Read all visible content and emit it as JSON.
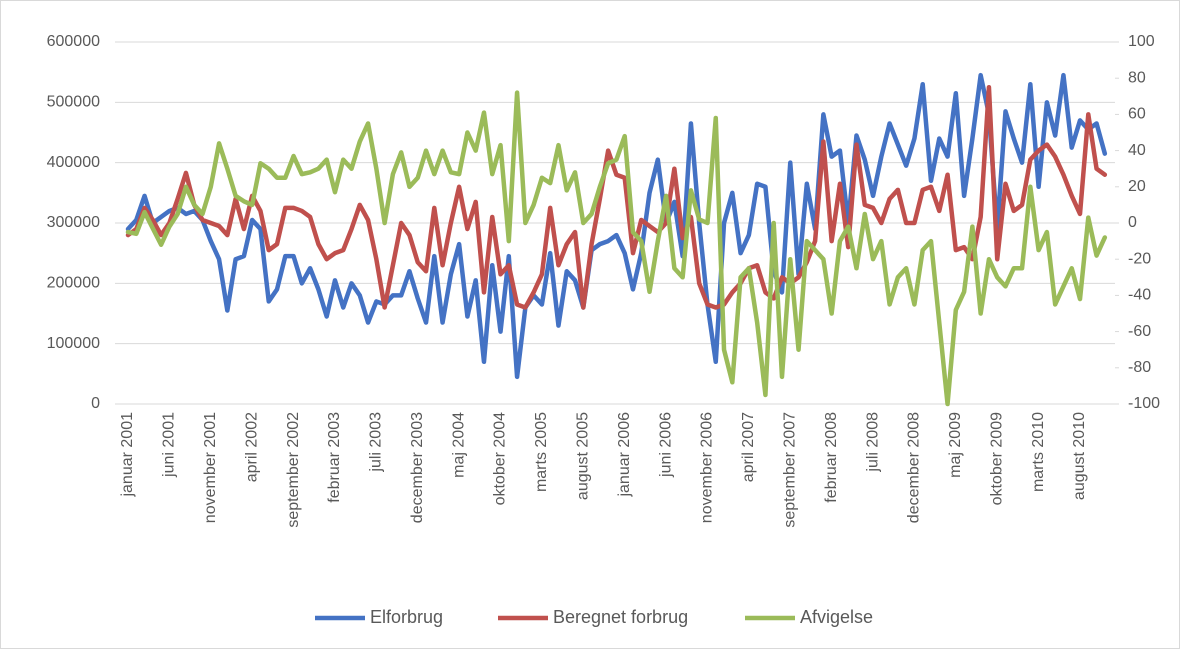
{
  "chart_data": {
    "type": "line",
    "categories": [
      "januar 2001",
      null,
      null,
      null,
      null,
      "juni 2001",
      null,
      null,
      null,
      null,
      "november 2001",
      null,
      null,
      null,
      null,
      "april 2002",
      null,
      null,
      null,
      null,
      "september 2002",
      null,
      null,
      null,
      null,
      "februar 2003",
      null,
      null,
      null,
      null,
      "juli 2003",
      null,
      null,
      null,
      null,
      "december 2003",
      null,
      null,
      null,
      null,
      "maj 2004",
      null,
      null,
      null,
      null,
      "oktober 2004",
      null,
      null,
      null,
      null,
      "marts 2005",
      null,
      null,
      null,
      null,
      "august 2005",
      null,
      null,
      null,
      null,
      "januar 2006",
      null,
      null,
      null,
      null,
      "juni 2006",
      null,
      null,
      null,
      null,
      "november 2006",
      null,
      null,
      null,
      null,
      "april 2007",
      null,
      null,
      null,
      null,
      "september 2007",
      null,
      null,
      null,
      null,
      "februar 2008",
      null,
      null,
      null,
      null,
      "juli 2008",
      null,
      null,
      null,
      null,
      "december 2008",
      null,
      null,
      null,
      null,
      "maj 2009",
      null,
      null,
      null,
      null,
      "oktober 2009",
      null,
      null,
      null,
      null,
      "marts 2010",
      null,
      null,
      null,
      null,
      "august 2010",
      null,
      null,
      null
    ],
    "series": [
      {
        "name": "Elforbrug",
        "color": "#4472c4",
        "values": [
          290000,
          305000,
          345000,
          300000,
          310000,
          320000,
          325000,
          315000,
          320000,
          305000,
          270000,
          240000,
          155000,
          240000,
          245000,
          305000,
          290000,
          170000,
          190000,
          245000,
          245000,
          200000,
          225000,
          190000,
          145000,
          205000,
          160000,
          200000,
          180000,
          135000,
          170000,
          165000,
          180000,
          180000,
          220000,
          175000,
          135000,
          245000,
          135000,
          215000,
          265000,
          145000,
          205000,
          70000,
          230000,
          120000,
          245000,
          45000,
          160000,
          180000,
          165000,
          250000,
          130000,
          220000,
          205000,
          160000,
          255000,
          265000,
          270000,
          280000,
          250000,
          190000,
          250000,
          350000,
          405000,
          300000,
          335000,
          245000,
          465000,
          300000,
          165000,
          70000,
          300000,
          350000,
          250000,
          280000,
          365000,
          360000,
          220000,
          185000,
          400000,
          215000,
          365000,
          290000,
          480000,
          410000,
          420000,
          300000,
          445000,
          405000,
          345000,
          410000,
          465000,
          430000,
          395000,
          440000,
          530000,
          370000,
          440000,
          410000,
          515000,
          345000,
          440000,
          545000,
          480000,
          290000,
          485000,
          440000,
          400000,
          530000,
          360000,
          500000,
          445000,
          545000,
          425000,
          470000,
          455000,
          465000,
          415000
        ]
      },
      {
        "name": "Beregnet forbrug",
        "color": "#c0504d",
        "values": [
          280000,
          290000,
          325000,
          305000,
          280000,
          300000,
          340000,
          383000,
          330000,
          305000,
          300000,
          295000,
          280000,
          340000,
          290000,
          345000,
          320000,
          255000,
          265000,
          325000,
          325000,
          320000,
          310000,
          265000,
          240000,
          250000,
          255000,
          290000,
          330000,
          305000,
          240000,
          160000,
          230000,
          300000,
          280000,
          235000,
          220000,
          325000,
          230000,
          300000,
          360000,
          290000,
          335000,
          185000,
          310000,
          215000,
          230000,
          165000,
          160000,
          185000,
          215000,
          325000,
          230000,
          265000,
          285000,
          160000,
          265000,
          340000,
          420000,
          380000,
          375000,
          250000,
          305000,
          295000,
          285000,
          300000,
          390000,
          275000,
          310000,
          200000,
          165000,
          160000,
          165000,
          185000,
          200000,
          225000,
          230000,
          185000,
          175000,
          210000,
          200000,
          210000,
          235000,
          270000,
          435000,
          270000,
          365000,
          260000,
          430000,
          330000,
          325000,
          300000,
          340000,
          355000,
          300000,
          300000,
          355000,
          360000,
          320000,
          380000,
          255000,
          260000,
          240000,
          310000,
          525000,
          240000,
          365000,
          320000,
          330000,
          405000,
          420000,
          430000,
          410000,
          380000,
          345000,
          315000,
          480000,
          390000,
          380000
        ]
      },
      {
        "name": "Afvigelse",
        "color": "#9bbb59",
        "axis": "y2",
        "values": [
          -5,
          -6,
          6,
          -3,
          -12,
          -2,
          5,
          20,
          10,
          5,
          20,
          44,
          30,
          15,
          12,
          10,
          33,
          30,
          25,
          25,
          37,
          27,
          28,
          30,
          35,
          17,
          35,
          30,
          45,
          55,
          30,
          0,
          27,
          39,
          20,
          25,
          40,
          27,
          40,
          28,
          27,
          50,
          40,
          61,
          27,
          43,
          -10,
          72,
          0,
          10,
          25,
          22,
          43,
          18,
          28,
          0,
          5,
          20,
          33,
          35,
          48,
          -5,
          -10,
          -38,
          -10,
          15,
          -25,
          -30,
          18,
          2,
          0,
          58,
          -70,
          -88,
          -30,
          -25,
          -55,
          -95,
          0,
          -85,
          -20,
          -70,
          -10,
          -15,
          -20,
          -50,
          -10,
          -2,
          -25,
          5,
          -20,
          -10,
          -45,
          -30,
          -25,
          -45,
          -15,
          -10,
          -55,
          -100,
          -48,
          -38,
          -2,
          -50,
          -20,
          -30,
          -35,
          -25,
          -25,
          20,
          -15,
          -5,
          -45,
          -35,
          -25,
          -42,
          3,
          -18,
          -8
        ]
      }
    ],
    "ylim": [
      0,
      600000
    ],
    "yticks": [
      0,
      100000,
      200000,
      300000,
      400000,
      500000,
      600000
    ],
    "y2lim": [
      -100,
      100
    ],
    "y2ticks": [
      -100,
      -80,
      -60,
      -40,
      -20,
      0,
      20,
      40,
      60,
      80,
      100
    ],
    "grid": true,
    "legend": "bottom"
  }
}
